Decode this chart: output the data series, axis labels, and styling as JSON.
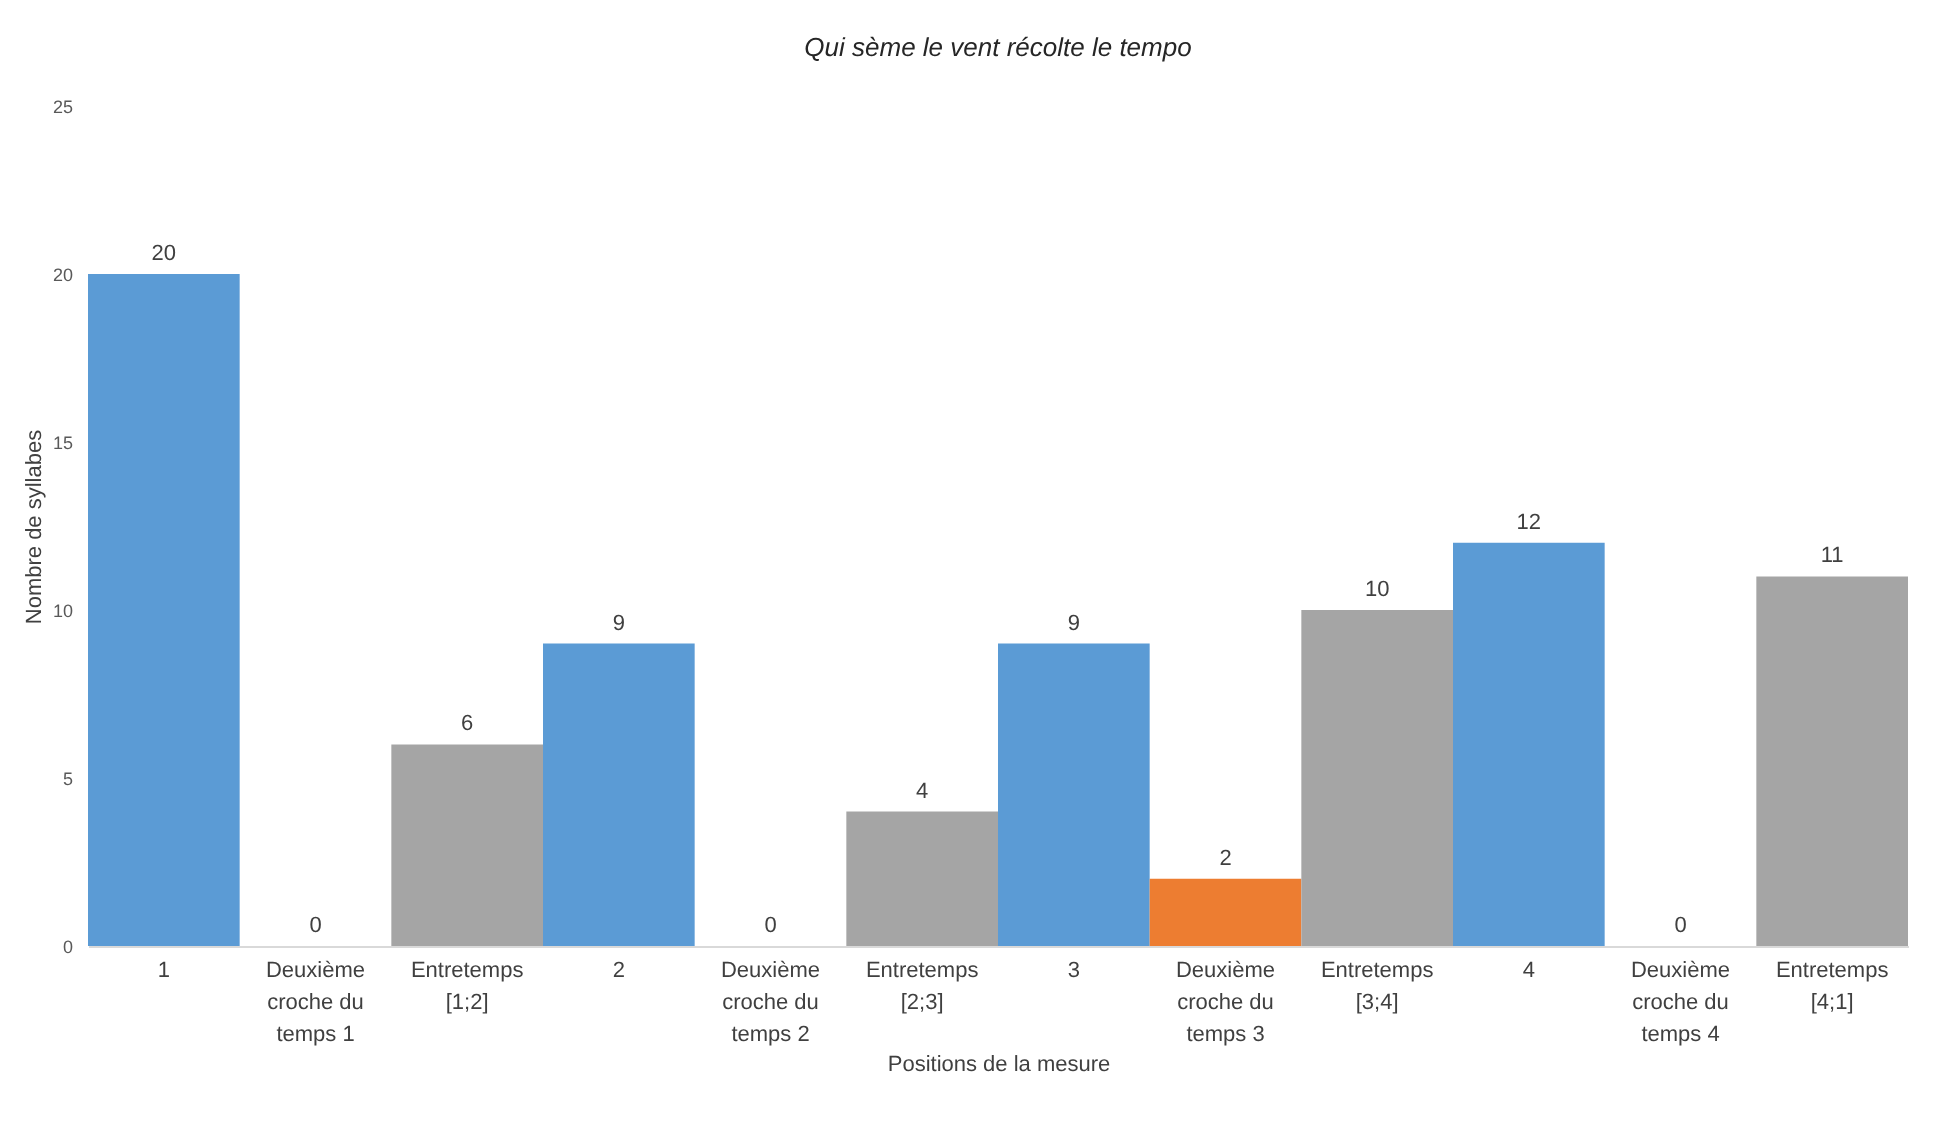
{
  "chart_data": {
    "type": "bar",
    "title": "Qui sème le vent récolte le tempo",
    "xlabel": "Positions de la mesure",
    "ylabel": "Nombre de syllabes",
    "categories": [
      "1",
      "Deuxième croche du temps 1",
      "Entretemps [1;2]",
      "2",
      "Deuxième croche du temps 2",
      "Entretemps [2;3]",
      "3",
      "Deuxième croche du temps 3",
      "Entretemps [3;4]",
      "4",
      "Deuxième croche du temps 4",
      "Entretemps [4;1]"
    ],
    "values": [
      20,
      0,
      6,
      9,
      0,
      4,
      9,
      2,
      10,
      12,
      0,
      11
    ],
    "colors": [
      "#5b9bd5",
      "#a5a5a5",
      "#a5a5a5",
      "#5b9bd5",
      "#a5a5a5",
      "#a5a5a5",
      "#5b9bd5",
      "#ed7d31",
      "#a5a5a5",
      "#5b9bd5",
      "#a5a5a5",
      "#a5a5a5"
    ],
    "ylim": [
      0,
      25
    ],
    "yticks": [
      0,
      5,
      10,
      15,
      20,
      25
    ],
    "grid": false,
    "data_labels": true
  }
}
